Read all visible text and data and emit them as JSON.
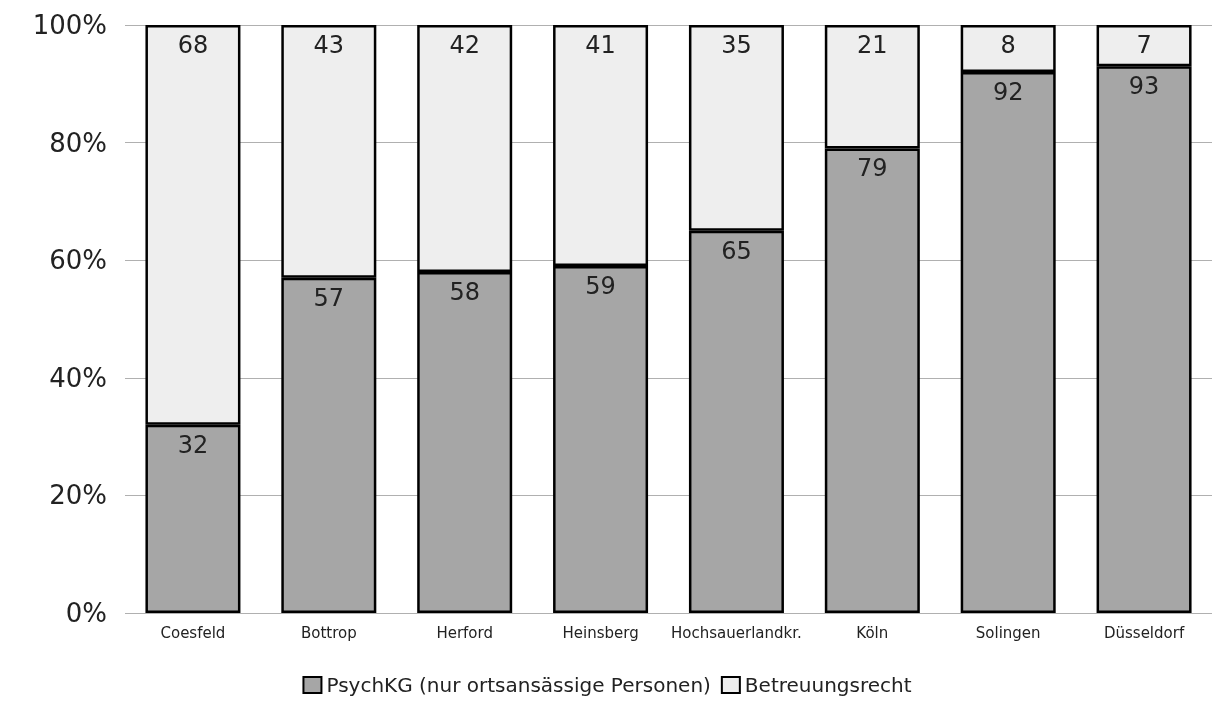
{
  "chart_data": {
    "type": "bar",
    "stacked": true,
    "categories": [
      "Coesfeld",
      "Bottrop",
      "Herford",
      "Heinsberg",
      "Hochsauerlandkr.",
      "Köln",
      "Solingen",
      "Düsseldorf"
    ],
    "series": [
      {
        "name": "PsychKG (nur ortsansässige Personen)",
        "color": "#a6a6a6",
        "values": [
          32,
          57,
          58,
          59,
          65,
          79,
          92,
          93
        ]
      },
      {
        "name": "Betreuungsrecht",
        "color": "#eeeeee",
        "values": [
          68,
          43,
          42,
          41,
          35,
          21,
          8,
          7
        ]
      }
    ],
    "ylim": [
      0,
      100
    ],
    "yticks": [
      {
        "value": 0,
        "label": "0%"
      },
      {
        "value": 20,
        "label": "20%"
      },
      {
        "value": 40,
        "label": "40%"
      },
      {
        "value": 60,
        "label": "60%"
      },
      {
        "value": 80,
        "label": "80%"
      },
      {
        "value": 100,
        "label": "100%"
      }
    ],
    "grid": "y",
    "legend": "bottom",
    "data_labels": true
  }
}
